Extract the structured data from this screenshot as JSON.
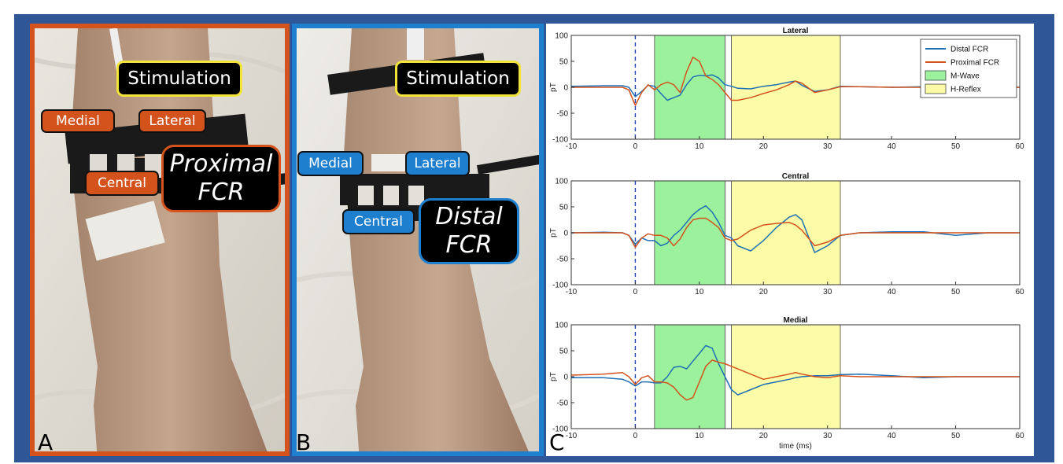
{
  "panels": {
    "a": {
      "letter": "A",
      "stimulation": "Stimulation",
      "medial": "Medial",
      "lateral": "Lateral",
      "central": "Central",
      "title_line1": "Proximal",
      "title_line2": "FCR"
    },
    "b": {
      "letter": "B",
      "stimulation": "Stimulation",
      "medial": "Medial",
      "lateral": "Lateral",
      "central": "Central",
      "title_line1": "Distal",
      "title_line2": "FCR"
    },
    "c": {
      "letter": "C"
    }
  },
  "colors": {
    "distal": "#1f6fb4",
    "proximal": "#d4531d",
    "mwave": "#9cf29c",
    "hreflex": "#fbfba8",
    "frame": "#2f5797"
  },
  "chart_data": {
    "type": "line",
    "xlabel": "time (ms)",
    "ylabel": "pT",
    "xlim": [
      -10,
      60
    ],
    "ylim": [
      -100,
      100
    ],
    "xticks": [
      -10,
      0,
      10,
      20,
      30,
      40,
      50,
      60
    ],
    "yticks": [
      100,
      50,
      0,
      -50,
      -100
    ],
    "stim_line_x": 0,
    "legend": {
      "placement": "top-right",
      "entries": [
        "Distal FCR",
        "Proximal FCR",
        "M-Wave",
        "H-Reflex"
      ]
    },
    "shaded_regions": [
      {
        "name": "M-Wave",
        "x": [
          3,
          14
        ]
      },
      {
        "name": "H-Reflex",
        "x": [
          15,
          32
        ]
      }
    ],
    "subplots": [
      {
        "title": "Lateral",
        "series": [
          {
            "name": "Distal FCR",
            "x": [
              -10,
              -5,
              -2,
              -1,
              0,
              1,
              2,
              3,
              4,
              5,
              6,
              7,
              8,
              9,
              10,
              11,
              12,
              13,
              14,
              15,
              16,
              18,
              20,
              22,
              24,
              25,
              26,
              28,
              30,
              32,
              35,
              40,
              45,
              50,
              55,
              60
            ],
            "y": [
              2,
              3,
              3,
              0,
              -18,
              -8,
              4,
              2,
              -12,
              -25,
              -20,
              -15,
              5,
              20,
              23,
              22,
              24,
              18,
              5,
              2,
              -2,
              -3,
              2,
              5,
              10,
              12,
              4,
              -8,
              -5,
              2,
              1,
              0,
              1,
              0,
              0,
              0
            ]
          },
          {
            "name": "Proximal FCR",
            "x": [
              -10,
              -5,
              -2,
              -1,
              0,
              1,
              2,
              3,
              4,
              5,
              6,
              7,
              8,
              9,
              10,
              11,
              12,
              13,
              14,
              15,
              16,
              18,
              20,
              22,
              24,
              25,
              26,
              28,
              30,
              32,
              35,
              40,
              45,
              50,
              55,
              60
            ],
            "y": [
              0,
              0,
              0,
              -5,
              -35,
              -10,
              5,
              -5,
              5,
              10,
              5,
              -10,
              30,
              58,
              50,
              22,
              15,
              5,
              -10,
              -25,
              -25,
              -20,
              -12,
              -5,
              5,
              12,
              8,
              -10,
              -5,
              1,
              1,
              0,
              0,
              0,
              0,
              0
            ]
          }
        ]
      },
      {
        "title": "Central",
        "series": [
          {
            "name": "Distal FCR",
            "x": [
              -10,
              -5,
              -2,
              -1,
              0,
              1,
              2,
              3,
              4,
              5,
              6,
              7,
              8,
              9,
              10,
              11,
              12,
              13,
              14,
              15,
              16,
              18,
              20,
              22,
              24,
              25,
              26,
              28,
              30,
              32,
              35,
              40,
              45,
              50,
              55,
              60
            ],
            "y": [
              0,
              1,
              0,
              -5,
              -22,
              -10,
              -15,
              -15,
              -25,
              -20,
              -5,
              5,
              20,
              35,
              45,
              52,
              40,
              20,
              -5,
              -10,
              -25,
              -35,
              -15,
              10,
              30,
              35,
              25,
              -38,
              -25,
              -5,
              0,
              2,
              2,
              -5,
              0,
              0
            ]
          },
          {
            "name": "Proximal FCR",
            "x": [
              -10,
              -5,
              -2,
              -1,
              0,
              1,
              2,
              3,
              4,
              5,
              6,
              7,
              8,
              9,
              10,
              11,
              12,
              13,
              14,
              15,
              16,
              18,
              20,
              22,
              24,
              25,
              26,
              28,
              30,
              32,
              35,
              40,
              45,
              50,
              55,
              60
            ],
            "y": [
              0,
              0,
              0,
              -5,
              -28,
              -10,
              -2,
              -5,
              -5,
              -10,
              -25,
              -12,
              10,
              25,
              28,
              28,
              20,
              10,
              -10,
              -15,
              -12,
              5,
              15,
              18,
              20,
              15,
              5,
              -25,
              -18,
              -5,
              0,
              0,
              0,
              0,
              0,
              0
            ]
          }
        ]
      },
      {
        "title": "Medial",
        "series": [
          {
            "name": "Distal FCR",
            "x": [
              -10,
              -5,
              -2,
              -1,
              0,
              1,
              2,
              3,
              4,
              5,
              6,
              7,
              8,
              9,
              10,
              11,
              12,
              13,
              14,
              15,
              16,
              18,
              20,
              22,
              24,
              25,
              26,
              28,
              30,
              32,
              35,
              40,
              45,
              50,
              55,
              60
            ],
            "y": [
              -2,
              -2,
              -5,
              -10,
              -18,
              -10,
              -10,
              -12,
              -12,
              0,
              18,
              20,
              15,
              30,
              45,
              60,
              55,
              25,
              0,
              -25,
              -35,
              -25,
              -15,
              -10,
              -5,
              -2,
              0,
              2,
              2,
              4,
              5,
              2,
              -2,
              0,
              0,
              0
            ]
          },
          {
            "name": "Proximal FCR",
            "x": [
              -10,
              -5,
              -2,
              -1,
              0,
              1,
              2,
              3,
              4,
              5,
              6,
              7,
              8,
              9,
              10,
              11,
              12,
              13,
              14,
              15,
              16,
              18,
              20,
              22,
              24,
              25,
              26,
              28,
              30,
              32,
              35,
              40,
              45,
              50,
              55,
              60
            ],
            "y": [
              3,
              5,
              8,
              0,
              -15,
              -2,
              2,
              -10,
              -10,
              -12,
              -20,
              -35,
              -45,
              -40,
              -10,
              20,
              32,
              28,
              25,
              20,
              15,
              5,
              -5,
              0,
              5,
              8,
              5,
              0,
              -2,
              2,
              0,
              0,
              0,
              0,
              0,
              0
            ]
          }
        ]
      }
    ]
  }
}
